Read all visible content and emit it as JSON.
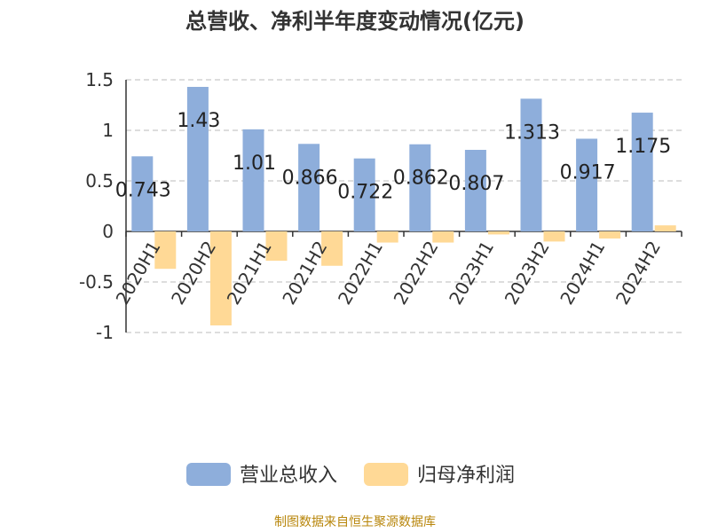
{
  "chart_data": {
    "type": "bar",
    "title": "总营收、净利半年度变动情况(亿元)",
    "categories": [
      "2020H1",
      "2020H2",
      "2021H1",
      "2021H2",
      "2022H1",
      "2022H2",
      "2023H1",
      "2023H2",
      "2024H1",
      "2024H2"
    ],
    "series": [
      {
        "name": "营业总收入",
        "color": "#8eaedb",
        "values": [
          0.743,
          1.43,
          1.01,
          0.866,
          0.722,
          0.862,
          0.807,
          1.313,
          0.917,
          1.175
        ],
        "value_labels": [
          "0.743",
          "1.43",
          "1.01",
          "0.866",
          "0.722",
          "0.862",
          "0.807",
          "1.313",
          "0.917",
          "1.175"
        ]
      },
      {
        "name": "归母净利润",
        "color": "#ffd996",
        "values": [
          -0.37,
          -0.93,
          -0.29,
          -0.34,
          -0.11,
          -0.11,
          -0.03,
          -0.1,
          -0.07,
          0.06
        ]
      }
    ],
    "ylim": [
      -1,
      1.5
    ],
    "yticks": [
      1.5,
      1,
      0.5,
      0,
      -0.5,
      -1
    ],
    "ytick_labels": [
      "1.5",
      "1",
      "0.5",
      "0",
      "-0.5",
      "-1"
    ],
    "grid": true,
    "legend": "bottom"
  },
  "source": "制图数据来自恒生聚源数据库"
}
